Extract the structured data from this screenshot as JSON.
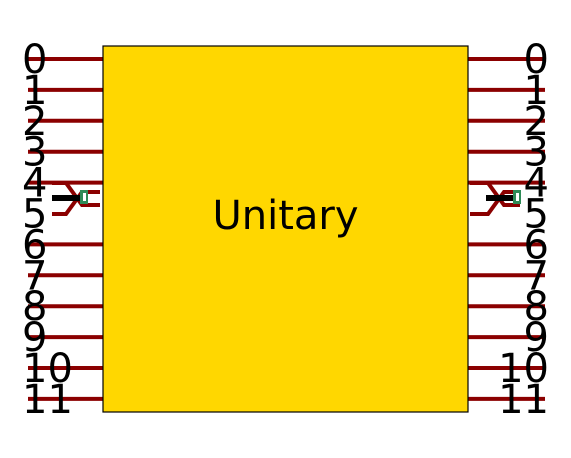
{
  "diagram": {
    "title": "Unitary",
    "left_labels": [
      "0",
      "1",
      "2",
      "3",
      "4",
      "5",
      "6",
      "7",
      "8",
      "9",
      "10",
      "11"
    ],
    "right_labels": [
      "0",
      "1",
      "2",
      "3",
      "4",
      "5",
      "6",
      "7",
      "8",
      "9",
      "10",
      "11"
    ],
    "colors": {
      "box_fill": "#ffd700",
      "box_stroke": "#000000",
      "wire": "#8b0000",
      "label": "#000000",
      "swap_body": "#000000",
      "swap_accent": "#2e8b57"
    }
  }
}
